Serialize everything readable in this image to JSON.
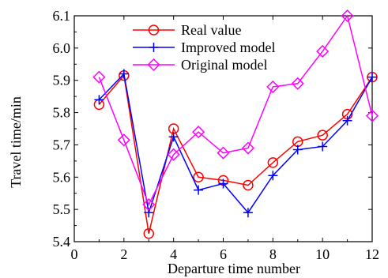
{
  "chart_data": {
    "type": "line",
    "title": "",
    "xlabel": "Departure time number",
    "ylabel": "Travel time/min",
    "xlim": [
      0,
      12
    ],
    "ylim": [
      5.4,
      6.1
    ],
    "x_ticks": [
      0,
      2,
      4,
      6,
      8,
      10,
      12
    ],
    "y_ticks": [
      5.4,
      5.5,
      5.6,
      5.7,
      5.8,
      5.9,
      6.0,
      6.1
    ],
    "x_tick_labels": [
      "0",
      "2",
      "4",
      "6",
      "8",
      "10",
      "12"
    ],
    "y_tick_labels": [
      "5.4",
      "5.5",
      "5.6",
      "5.7",
      "5.8",
      "5.9",
      "6.0",
      "6.1"
    ],
    "grid": false,
    "legend_position": "top-center",
    "x": [
      1,
      2,
      3,
      4,
      5,
      6,
      7,
      8,
      9,
      10,
      11,
      12
    ],
    "series": [
      {
        "name": "Real value",
        "color": "#ff0000",
        "marker": "circle",
        "values": [
          5.825,
          5.915,
          5.425,
          5.75,
          5.6,
          5.59,
          5.575,
          5.645,
          5.71,
          5.73,
          5.795,
          5.91
        ]
      },
      {
        "name": "Improved model",
        "color": "#0000ff",
        "marker": "plus",
        "values": [
          5.84,
          5.92,
          5.49,
          5.725,
          5.56,
          5.58,
          5.49,
          5.605,
          5.685,
          5.695,
          5.775,
          5.91
        ]
      },
      {
        "name": "Original model",
        "color": "#ff00ff",
        "marker": "diamond",
        "values": [
          5.91,
          5.715,
          5.515,
          5.67,
          5.74,
          5.675,
          5.69,
          5.88,
          5.89,
          5.99,
          6.1,
          5.79
        ]
      }
    ]
  }
}
